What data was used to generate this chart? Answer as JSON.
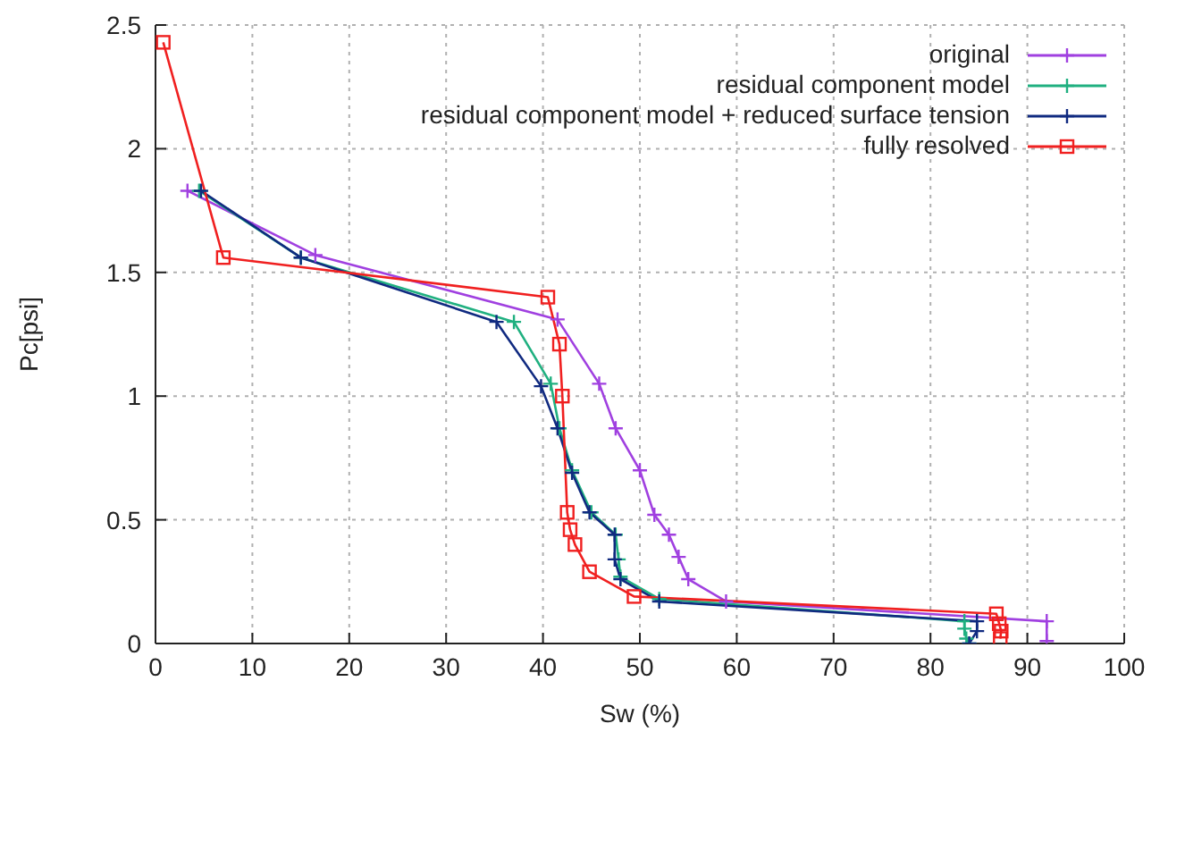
{
  "chart_data": {
    "type": "line",
    "xlabel": "Sw (%)",
    "ylabel": "Pc[psi]",
    "xlim": [
      0,
      100
    ],
    "ylim": [
      0,
      2.5
    ],
    "xticks": [
      0,
      10,
      20,
      30,
      40,
      50,
      60,
      70,
      80,
      90,
      100
    ],
    "yticks": [
      0,
      0.5,
      1,
      1.5,
      2,
      2.5
    ],
    "grid": true,
    "legend": "top right",
    "line_style": "solid",
    "series": [
      {
        "name": "original",
        "color": "#a040e0",
        "marker": "cross",
        "x": [
          3.3,
          16.5,
          41.5,
          45.8,
          47.5,
          50,
          51.5,
          53,
          54,
          55,
          58.9,
          92,
          92
        ],
        "values": [
          1.83,
          1.57,
          1.31,
          1.05,
          0.87,
          0.7,
          0.52,
          0.44,
          0.35,
          0.26,
          0.17,
          0.09,
          0.01
        ]
      },
      {
        "name": "residual component model",
        "color": "#20b080",
        "marker": "cross",
        "x": [
          4.5,
          15,
          37,
          40.8,
          41.7,
          43,
          45,
          47.5,
          47.8,
          48,
          52,
          83.5,
          83.5,
          83.7,
          84
        ],
        "values": [
          1.83,
          1.56,
          1.3,
          1.05,
          0.87,
          0.7,
          0.53,
          0.44,
          0.34,
          0.27,
          0.18,
          0.09,
          0.06,
          0.02,
          0
        ]
      },
      {
        "name": "residual component model + reduced surface tension",
        "color": "#102a80",
        "marker": "cross",
        "x": [
          4.7,
          15,
          35.2,
          39.8,
          41.5,
          43,
          44.8,
          47.4,
          47.4,
          48,
          52,
          84.8,
          84.8,
          84
        ],
        "values": [
          1.83,
          1.56,
          1.3,
          1.04,
          0.87,
          0.69,
          0.53,
          0.44,
          0.34,
          0.26,
          0.17,
          0.09,
          0.05,
          0
        ]
      },
      {
        "name": "fully resolved",
        "color": "#f02020",
        "marker": "square",
        "x": [
          0.8,
          7,
          40.5,
          41.7,
          42,
          42.5,
          42.8,
          43.3,
          44.8,
          49.4,
          86.8,
          87.1,
          87.3,
          87.2
        ],
        "values": [
          2.43,
          1.56,
          1.4,
          1.21,
          1,
          0.53,
          0.46,
          0.4,
          0.29,
          0.19,
          0.12,
          0.08,
          0.05,
          0.02
        ]
      }
    ]
  }
}
